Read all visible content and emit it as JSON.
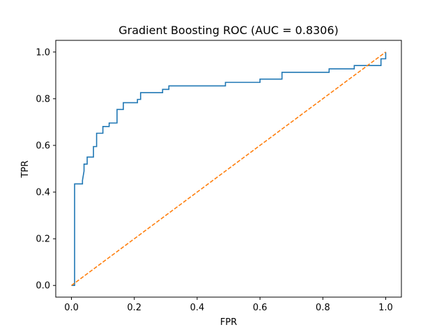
{
  "chart_data": {
    "type": "line",
    "title": "Gradient Boosting ROC (AUC = 0.8306)",
    "xlabel": "FPR",
    "ylabel": "TPR",
    "xlim": [
      -0.05,
      1.05
    ],
    "ylim": [
      -0.05,
      1.05
    ],
    "xticks": [
      "0.0",
      "0.2",
      "0.4",
      "0.6",
      "0.8",
      "1.0"
    ],
    "yticks": [
      "0.0",
      "0.2",
      "0.4",
      "0.6",
      "0.8",
      "1.0"
    ],
    "grid": false,
    "legend": "none",
    "series": [
      {
        "color": "#1f77b4",
        "style": "solid",
        "x": [
          0.0,
          0.01,
          0.01,
          0.01,
          0.035,
          0.035,
          0.04,
          0.04,
          0.05,
          0.05,
          0.07,
          0.07,
          0.08,
          0.08,
          0.1,
          0.1,
          0.12,
          0.12,
          0.145,
          0.145,
          0.165,
          0.165,
          0.21,
          0.21,
          0.22,
          0.22,
          0.29,
          0.29,
          0.31,
          0.31,
          0.49,
          0.49,
          0.6,
          0.6,
          0.67,
          0.67,
          0.79,
          0.79,
          0.82,
          0.82,
          0.9,
          0.9,
          0.985,
          0.985,
          1.0,
          1.0
        ],
        "y": [
          0.0,
          0.0,
          0.005,
          0.435,
          0.435,
          0.45,
          0.49,
          0.52,
          0.52,
          0.55,
          0.55,
          0.595,
          0.595,
          0.652,
          0.652,
          0.681,
          0.681,
          0.696,
          0.696,
          0.754,
          0.754,
          0.783,
          0.783,
          0.797,
          0.797,
          0.826,
          0.826,
          0.84,
          0.84,
          0.855,
          0.855,
          0.87,
          0.87,
          0.884,
          0.884,
          0.913,
          0.913,
          0.913,
          0.913,
          0.928,
          0.928,
          0.942,
          0.942,
          0.971,
          0.971,
          1.0
        ]
      },
      {
        "color": "#ff7f0e",
        "style": "dashed",
        "x": [
          0.0,
          1.0
        ],
        "y": [
          0.0,
          1.0
        ]
      }
    ]
  }
}
